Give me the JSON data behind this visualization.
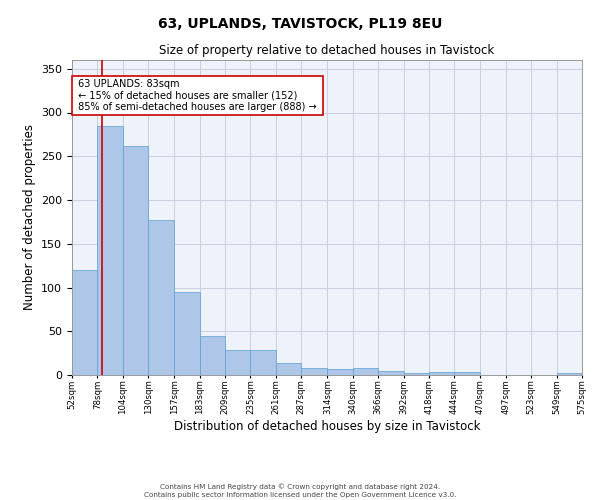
{
  "title1": "63, UPLANDS, TAVISTOCK, PL19 8EU",
  "title2": "Size of property relative to detached houses in Tavistock",
  "xlabel": "Distribution of detached houses by size in Tavistock",
  "ylabel": "Number of detached properties",
  "footer1": "Contains HM Land Registry data © Crown copyright and database right 2024.",
  "footer2": "Contains public sector information licensed under the Open Government Licence v3.0.",
  "annotation_line1": "63 UPLANDS: 83sqm",
  "annotation_line2": "← 15% of detached houses are smaller (152)",
  "annotation_line3": "85% of semi-detached houses are larger (888) →",
  "property_size_sqm": 83,
  "bar_edges": [
    52,
    78,
    104,
    130,
    157,
    183,
    209,
    235,
    261,
    287,
    314,
    340,
    366,
    392,
    418,
    444,
    470,
    497,
    523,
    549,
    575
  ],
  "bar_heights": [
    120,
    285,
    262,
    177,
    95,
    45,
    29,
    29,
    14,
    8,
    7,
    8,
    5,
    2,
    4,
    3,
    0,
    0,
    0,
    2
  ],
  "bar_color": "#aec6e8",
  "bar_edge_color": "#5a9fd4",
  "vline_color": "#cc0000",
  "annotation_box_color": "#cc0000",
  "bg_color": "#eef2fb",
  "grid_color": "#c8cfe0",
  "ylim": [
    0,
    360
  ],
  "yticks": [
    0,
    50,
    100,
    150,
    200,
    250,
    300,
    350
  ]
}
